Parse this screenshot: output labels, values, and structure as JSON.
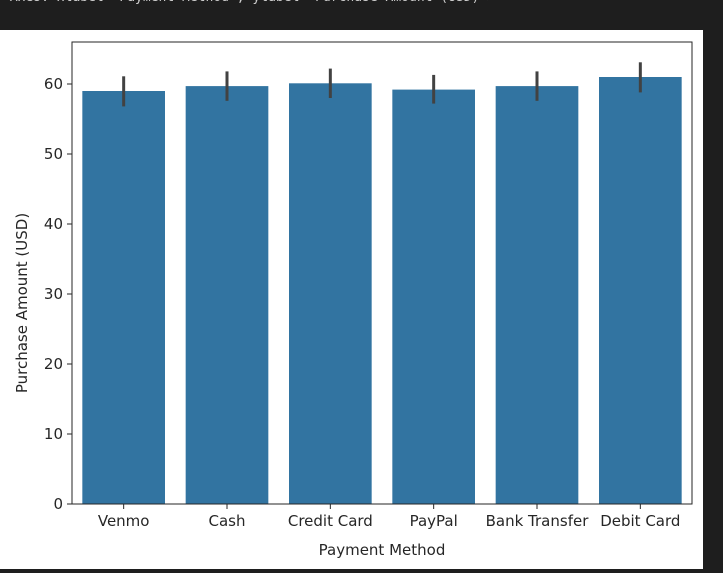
{
  "output": {
    "text": "<Axes: xlabel='Payment Method', ylabel='Purchase Amount (USD)'>"
  },
  "colors": {
    "bar": "#3274a1",
    "errorbar": "#424242",
    "axes": "#262626",
    "background": "#ffffff",
    "panel": "#1e1e1e"
  },
  "chart_data": {
    "type": "bar",
    "categories": [
      "Venmo",
      "Cash",
      "Credit Card",
      "PayPal",
      "Bank Transfer",
      "Debit Card"
    ],
    "values": [
      59.0,
      59.7,
      60.1,
      59.2,
      59.7,
      61.0
    ],
    "error_low": [
      56.8,
      57.6,
      58.0,
      57.2,
      57.6,
      58.8
    ],
    "error_high": [
      61.1,
      61.8,
      62.2,
      61.3,
      61.8,
      63.1
    ],
    "title": "",
    "xlabel": "Payment Method",
    "ylabel": "Purchase Amount (USD)",
    "ylim": [
      0,
      66
    ],
    "yticks": [
      0,
      10,
      20,
      30,
      40,
      50,
      60
    ],
    "grid": false,
    "legend": "none"
  }
}
